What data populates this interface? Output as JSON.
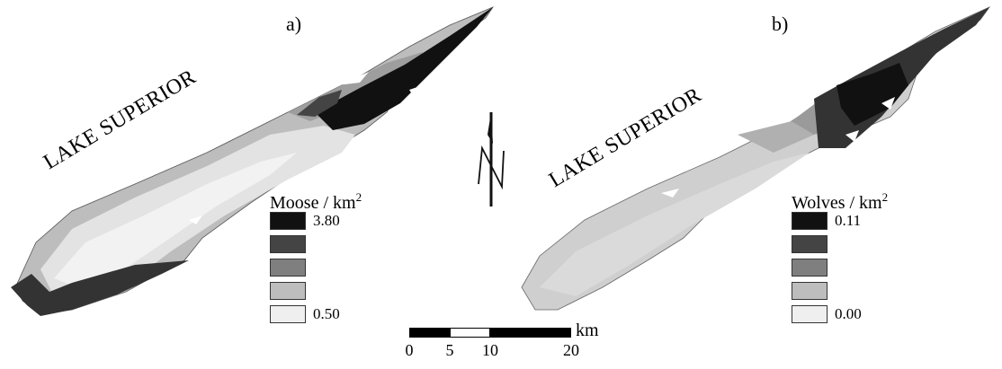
{
  "panels": [
    {
      "letter": "a)",
      "lake_label": "LAKE SUPERIOR",
      "legend": {
        "title": "Moose / km",
        "title_sup": "2",
        "classes": [
          {
            "color": "#111111",
            "label": "3.80"
          },
          {
            "color": "#444444",
            "label": ""
          },
          {
            "color": "#7f7f7f",
            "label": ""
          },
          {
            "color": "#bdbdbd",
            "label": ""
          },
          {
            "color": "#efefef",
            "label": "0.50"
          }
        ]
      }
    },
    {
      "letter": "b)",
      "lake_label": "LAKE SUPERIOR",
      "legend": {
        "title": "Wolves / km",
        "title_sup": "2",
        "classes": [
          {
            "color": "#111111",
            "label": "0.11"
          },
          {
            "color": "#444444",
            "label": ""
          },
          {
            "color": "#7f7f7f",
            "label": ""
          },
          {
            "color": "#bdbdbd",
            "label": ""
          },
          {
            "color": "#efefef",
            "label": "0.00"
          }
        ]
      }
    }
  ],
  "north_arrow": {
    "letter": "N",
    "icon": "north-arrow-icon"
  },
  "scale_bar": {
    "unit": "km",
    "ticks": [
      0,
      5,
      10,
      20
    ]
  }
}
